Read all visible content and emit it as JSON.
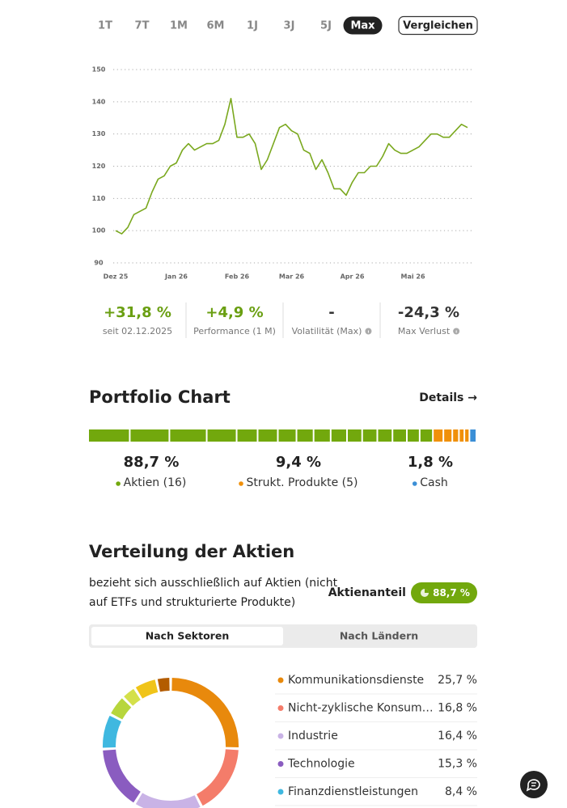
{
  "range_tabs": {
    "items": [
      "1T",
      "7T",
      "1M",
      "6M",
      "1J",
      "3J",
      "5J",
      "Max"
    ],
    "selected": 7
  },
  "compare_button": "Vergleichen",
  "chart_data": {
    "type": "line",
    "categories": [
      "Dez 25",
      null,
      null,
      null,
      null,
      null,
      null,
      null,
      null,
      null,
      "Jan 26",
      null,
      null,
      null,
      null,
      null,
      null,
      null,
      null,
      null,
      "Feb 26",
      null,
      null,
      null,
      null,
      null,
      null,
      null,
      null,
      "Mar 26",
      null,
      null,
      null,
      null,
      null,
      null,
      null,
      null,
      null,
      "Apr 26",
      null,
      null,
      null,
      null,
      null,
      null,
      null,
      null,
      null,
      "Mai 26",
      null,
      null,
      null,
      null,
      null,
      null,
      null,
      null,
      null
    ],
    "series": [
      {
        "color": "#7aa81e",
        "values": [
          100,
          99,
          101,
          105,
          106,
          107,
          112,
          116,
          117,
          120,
          121,
          125,
          127,
          125,
          126,
          127,
          127,
          128,
          133,
          141,
          129,
          129,
          130,
          127,
          119,
          122,
          127,
          132,
          133,
          131,
          130,
          125,
          124,
          119,
          122,
          118,
          113,
          113,
          111,
          115,
          118,
          118,
          120,
          120,
          123,
          127,
          125,
          124,
          124,
          125,
          126,
          128,
          130,
          130,
          129,
          129,
          131,
          133,
          132
        ]
      }
    ],
    "ylim": [
      90,
      150
    ],
    "yticks": [
      90,
      100,
      110,
      120,
      130,
      140,
      150
    ],
    "grid": true
  },
  "stats": [
    {
      "value": 31.8,
      "value_label": "+31,8 %",
      "caption": "seit 02.12.2025",
      "positive": true,
      "info": false
    },
    {
      "value": 4.9,
      "value_label": "+4,9 %",
      "caption": "Performance (1 M)",
      "positive": true,
      "info": false
    },
    {
      "value": null,
      "value_label": "-",
      "caption": "Volatilität (Max)",
      "positive": false,
      "info": true
    },
    {
      "value": -24.3,
      "value_label": "-24,3 %",
      "caption": "Max Verlust",
      "positive": false,
      "info": true
    }
  ],
  "portfolio": {
    "title": "Portfolio Chart",
    "details_link": "Details →",
    "groups": [
      {
        "name": "Aktien (16)",
        "color": "#72a80d",
        "value": 88.7,
        "value_label": "88,7 %",
        "segments": [
          10.7,
          10.2,
          9.6,
          7.7,
          5.4,
          5.2,
          4.8,
          4.4,
          4.4,
          4.2,
          3.9,
          3.9,
          3.9,
          3.7,
          3.3,
          3.4
        ]
      },
      {
        "name": "Strukt. Produkte (5)",
        "color": "#f0900a",
        "value": 9.4,
        "value_label": "9,4 %",
        "segments": [
          2.7,
          2.3,
          1.7,
          1.4,
          1.3
        ]
      },
      {
        "name": "Cash",
        "color": "#3b8fd6",
        "value": 1.8,
        "value_label": "1,8 %",
        "segments": [
          1.8
        ]
      }
    ]
  },
  "distribution": {
    "title": "Verteilung der Aktien",
    "description": [
      "bezieht sich ausschließlich auf Aktien (nicht",
      "auf ETFs und strukturierte Produkte)"
    ],
    "share_label": "Aktienanteil",
    "tabs": {
      "items": [
        "Nach Sektoren",
        "Nach Ländern"
      ],
      "selected": 0
    },
    "sectors": [
      {
        "name": "Kommunikationsdienste",
        "value": 25.7,
        "value_label": "25,7 %",
        "color": "#e8890c"
      },
      {
        "name": "Nicht-zyklische Konsum…",
        "value": 16.8,
        "value_label": "16,8 %",
        "color": "#f47c6a"
      },
      {
        "name": "Industrie",
        "value": 16.4,
        "value_label": "16,4 %",
        "color": "#c9b3e6"
      },
      {
        "name": "Technologie",
        "value": 15.3,
        "value_label": "15,3 %",
        "color": "#8a5cc0"
      },
      {
        "name": "Finanzdienstleistungen",
        "value": 8.4,
        "value_label": "8,4 %",
        "color": "#3fb8e0"
      },
      {
        "name": null,
        "value": 5.0,
        "color": "#b7d63c"
      },
      {
        "name": null,
        "value": 3.5,
        "color": "#d4e04a"
      },
      {
        "name": null,
        "value": 5.5,
        "color": "#f0c419"
      },
      {
        "name": null,
        "value": 3.4,
        "color": "#b35c00"
      }
    ]
  }
}
